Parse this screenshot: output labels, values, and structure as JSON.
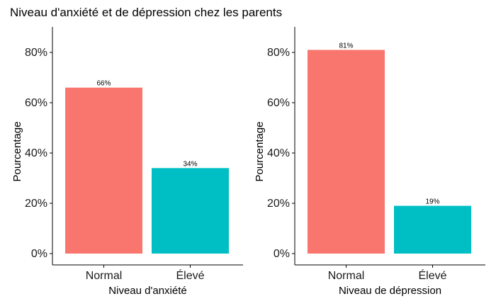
{
  "title": "Niveau d'anxiété et de dépression chez les parents",
  "colors": {
    "normal": "#F8766D",
    "eleve": "#00BFC4"
  },
  "chart_data": [
    {
      "type": "bar",
      "categories": [
        "Normal",
        "Élevé"
      ],
      "values": [
        66,
        34
      ],
      "data_labels": [
        "66%",
        "34%"
      ],
      "xlabel": "Niveau d'anxiété",
      "ylabel": "Pourcentage",
      "ylim": [
        0,
        90
      ],
      "yticks": [
        0,
        20,
        40,
        60,
        80
      ],
      "ytick_labels": [
        "0%",
        "20%",
        "40%",
        "60%",
        "80%"
      ],
      "grid": false,
      "legend": "none"
    },
    {
      "type": "bar",
      "categories": [
        "Normal",
        "Élevé"
      ],
      "values": [
        81,
        19
      ],
      "data_labels": [
        "81%",
        "19%"
      ],
      "xlabel": "Niveau de dépression",
      "ylabel": "Pourcentage",
      "ylim": [
        0,
        90
      ],
      "yticks": [
        0,
        20,
        40,
        60,
        80
      ],
      "ytick_labels": [
        "0%",
        "20%",
        "40%",
        "60%",
        "80%"
      ],
      "grid": false,
      "legend": "none"
    }
  ]
}
